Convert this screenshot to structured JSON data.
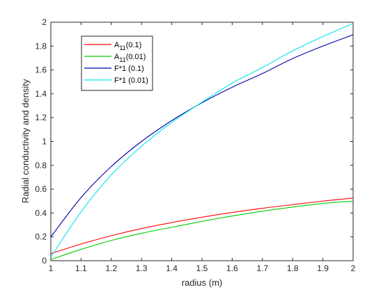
{
  "chart_data": {
    "type": "line",
    "title": "",
    "xlabel": "radius (m)",
    "ylabel": "Radial conductivity and density",
    "xlim": [
      1,
      2
    ],
    "ylim": [
      0,
      2
    ],
    "grid": false,
    "legend_position": "top-left",
    "x_ticks": [
      1,
      1.1,
      1.2,
      1.3,
      1.4,
      1.5,
      1.6,
      1.7,
      1.8,
      1.9,
      2
    ],
    "x_tick_labels": [
      "1",
      "1.1",
      "1.2",
      "1.3",
      "1.4",
      "1.5",
      "1.6",
      "1.7",
      "1.8",
      "1.9",
      "2"
    ],
    "y_ticks": [
      0,
      0.2,
      0.4,
      0.6,
      0.8,
      1,
      1.2,
      1.4,
      1.6,
      1.8,
      2
    ],
    "y_tick_labels": [
      "0",
      "0.2",
      "0.4",
      "0.6",
      "0.8",
      "1",
      "1.2",
      "1.4",
      "1.6",
      "1.8",
      "2"
    ],
    "x": [
      1.0,
      1.1,
      1.2,
      1.3,
      1.4,
      1.5,
      1.6,
      1.7,
      1.8,
      1.9,
      2.0
    ],
    "series": [
      {
        "name": "A",
        "sub": "11",
        "suffix": "(0.1)",
        "color": "#ff0000",
        "values": [
          0.06,
          0.14,
          0.21,
          0.27,
          0.32,
          0.365,
          0.405,
          0.44,
          0.47,
          0.5,
          0.525
        ]
      },
      {
        "name": "A",
        "sub": "11",
        "suffix": "(0.01)",
        "color": "#00cc00",
        "values": [
          0.01,
          0.095,
          0.17,
          0.23,
          0.28,
          0.33,
          0.375,
          0.415,
          0.45,
          0.48,
          0.5
        ]
      },
      {
        "name": "F*1 (0.1)",
        "sub": "",
        "suffix": "",
        "color": "#0000aa",
        "values": [
          0.2,
          0.53,
          0.79,
          1.0,
          1.175,
          1.325,
          1.455,
          1.57,
          1.695,
          1.8,
          1.895
        ]
      },
      {
        "name": "F*1 (0.01)",
        "sub": "",
        "suffix": "",
        "color": "#00e5ee",
        "values": [
          0.03,
          0.41,
          0.72,
          0.96,
          1.16,
          1.33,
          1.49,
          1.62,
          1.76,
          1.88,
          1.99
        ]
      }
    ]
  }
}
